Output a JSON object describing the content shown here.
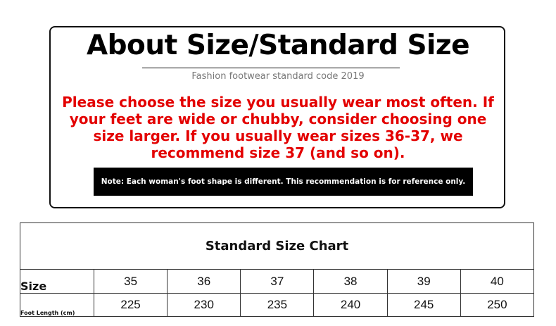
{
  "header": {
    "title": "About Size/Standard Size",
    "subtitle": "Fashion footwear standard code 2019",
    "advice": "Please choose the size you usually wear most often. If your feet are wide or chubby, consider choosing one size larger. If you usually wear sizes 36-37, we recommend size 37 (and so on).",
    "note": "Note: Each woman's foot shape is different. This recommendation is for reference only."
  },
  "chart": {
    "title": "Standard Size Chart",
    "size_label": "Size",
    "length_label": "Foot Length (cm)",
    "sizes": [
      "35",
      "36",
      "37",
      "38",
      "39",
      "40"
    ],
    "lengths": [
      "225",
      "230",
      "235",
      "240",
      "245",
      "250"
    ]
  },
  "colors": {
    "advice": "#e30000",
    "note_bg": "#000000"
  }
}
